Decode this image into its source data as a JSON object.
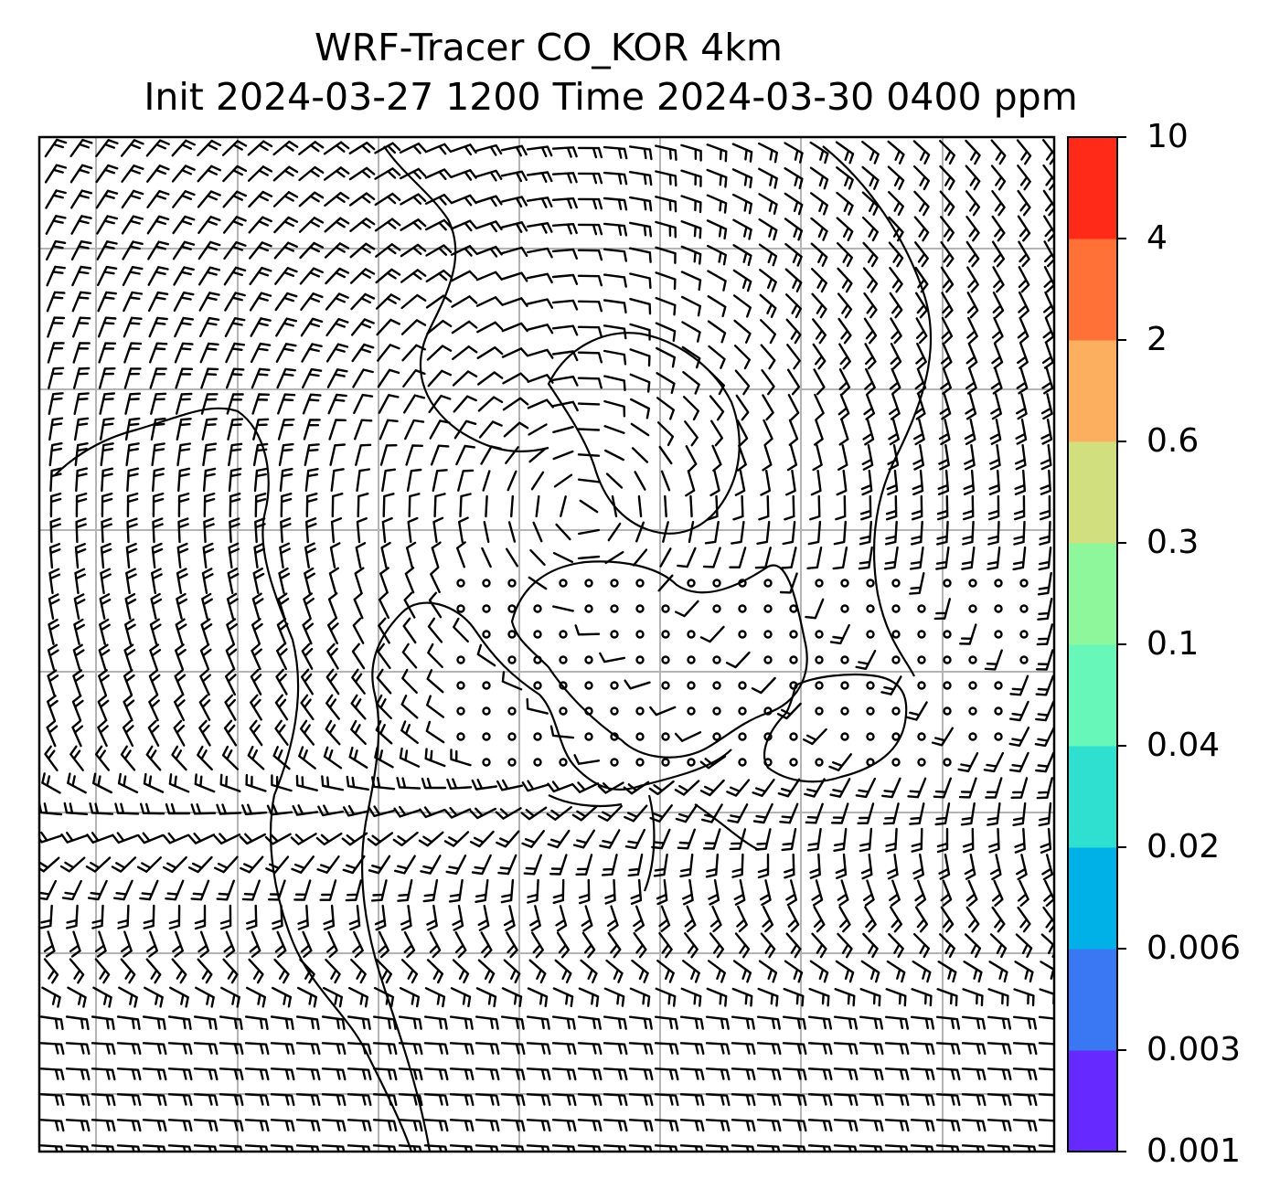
{
  "title": {
    "line1": "WRF-Tracer CO_KOR 4km",
    "line2": "Init 2024-03-27 1200 Time 2024-03-30 0400 ppm"
  },
  "map": {
    "type": "wind-barb map with tracer concentration",
    "gridlines": true,
    "barb_color": "#000000",
    "coastline_color": "#000000",
    "grid_color": "#b4b4b4"
  },
  "colorbar": {
    "orientation": "vertical",
    "position": "right",
    "unit": "ppm",
    "ticks": [
      "0.001",
      "0.003",
      "0.006",
      "0.02",
      "0.04",
      "0.1",
      "0.3",
      "0.6",
      "2",
      "4",
      "10"
    ],
    "colors": [
      "#6629ff",
      "#3a77f3",
      "#00b1e8",
      "#2fe0d0",
      "#67f7b9",
      "#8ff79b",
      "#d1df7f",
      "#fcb05f",
      "#ff7136",
      "#ff2a18"
    ]
  }
}
